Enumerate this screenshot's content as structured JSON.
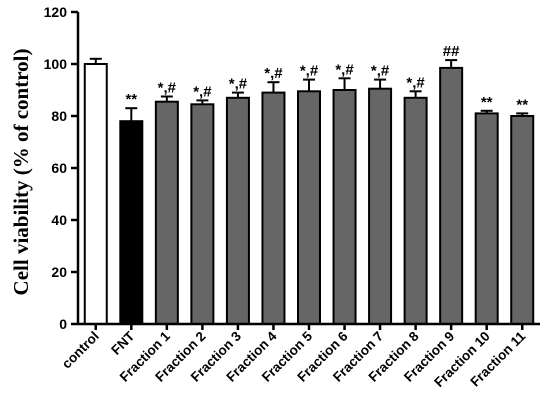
{
  "chart_data": {
    "type": "bar",
    "title": "",
    "xlabel": "",
    "ylabel": "Cell viability (% of control)",
    "ylim": [
      0,
      120
    ],
    "yticks": [
      0,
      20,
      40,
      60,
      80,
      100,
      120
    ],
    "categories": [
      "control",
      "FNT",
      "Fraction 1",
      "Fraction 2",
      "Fraction 3",
      "Fraction 4",
      "Fraction 5",
      "Fraction 6",
      "Fraction 7",
      "Fraction 8",
      "Fraction 9",
      "Fraction 10",
      "Fraction 11"
    ],
    "values": [
      100,
      78,
      85.5,
      84.5,
      87,
      89,
      89.5,
      90,
      90.5,
      87,
      98.5,
      81,
      80
    ],
    "errors": [
      2,
      5,
      2,
      1.5,
      2,
      4,
      4.5,
      4.5,
      3.5,
      2.5,
      3,
      1,
      1
    ],
    "significance": [
      "",
      "**",
      "*,#",
      "*,#",
      "*,#",
      "*,#",
      "*,#",
      "*,#",
      "*,#",
      "*,#",
      "##",
      "**",
      "**"
    ],
    "bar_colors": [
      "#ffffff",
      "#000000",
      "#666666",
      "#666666",
      "#666666",
      "#666666",
      "#666666",
      "#666666",
      "#666666",
      "#666666",
      "#666666",
      "#666666",
      "#666666"
    ],
    "grid": false,
    "legend": "none"
  }
}
